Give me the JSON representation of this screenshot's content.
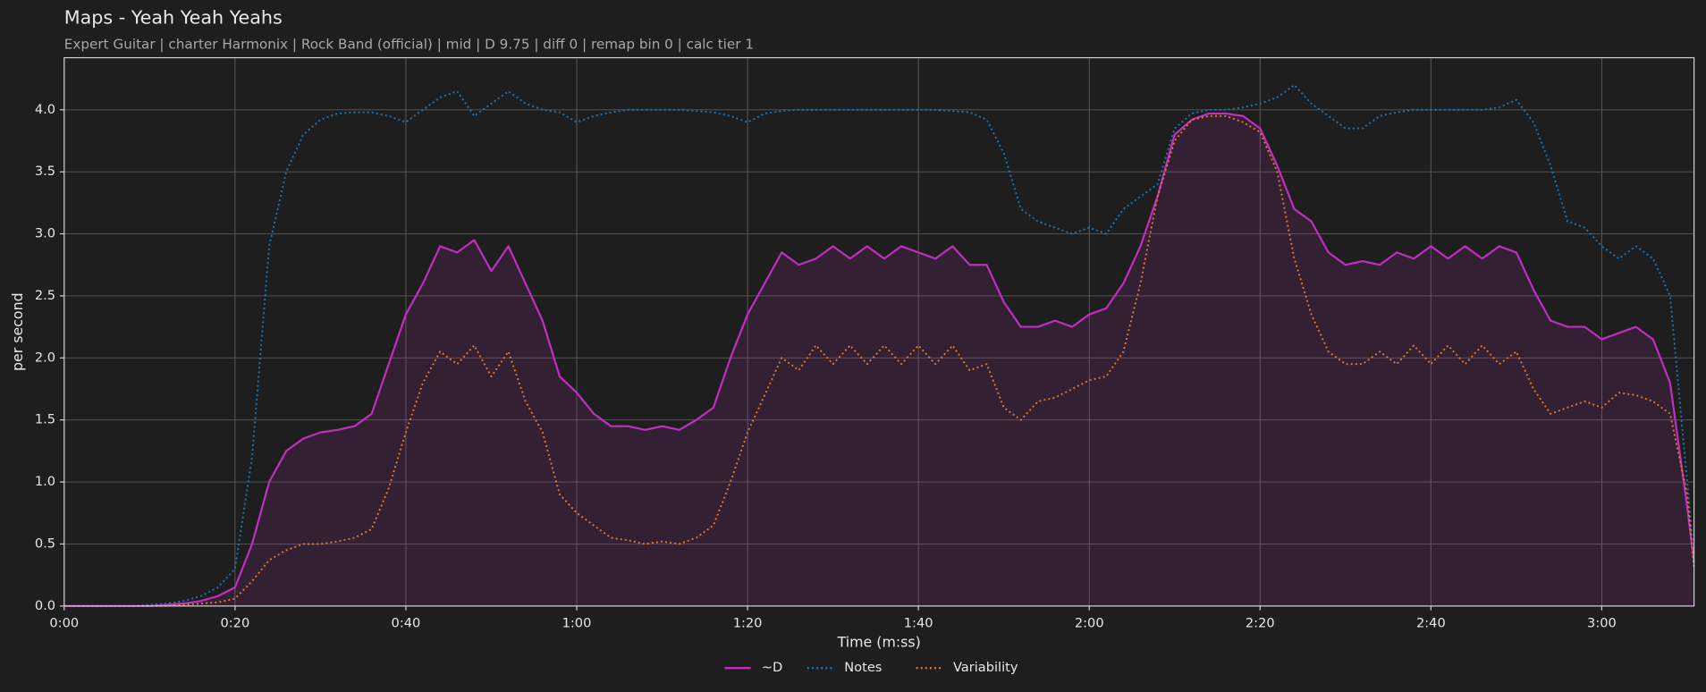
{
  "chart_data": {
    "type": "line",
    "title": "Maps - Yeah Yeah Yeahs",
    "subtitle": "Expert Guitar  |  charter Harmonix  |  Rock Band (official)  |  mid  |  D 9.75  |  diff 0  |  remap bin 0  |  calc tier 1",
    "x_label": "Time (m:ss)",
    "y_label": "per second",
    "xlim": [
      0,
      190.8
    ],
    "ylim": [
      0,
      4.42
    ],
    "xticks": [
      {
        "value": 0,
        "label": "0:00"
      },
      {
        "value": 20,
        "label": "0:20"
      },
      {
        "value": 40,
        "label": "0:40"
      },
      {
        "value": 60,
        "label": "1:00"
      },
      {
        "value": 80,
        "label": "1:20"
      },
      {
        "value": 100,
        "label": "1:40"
      },
      {
        "value": 120,
        "label": "2:00"
      },
      {
        "value": 140,
        "label": "2:20"
      },
      {
        "value": 160,
        "label": "2:40"
      },
      {
        "value": 180,
        "label": "3:00"
      }
    ],
    "yticks": [
      {
        "value": 0,
        "label": "0.0"
      },
      0.5,
      {
        "value": 1,
        "label": "1.0"
      },
      1.5,
      {
        "value": 2,
        "label": "2.0"
      },
      2.5,
      {
        "value": 3,
        "label": "3.0"
      },
      3.5,
      {
        "value": 4,
        "label": "4.0"
      }
    ],
    "grid": true,
    "legend": "bottom",
    "x": [
      0,
      2,
      4,
      6,
      8,
      10,
      12,
      14,
      16,
      18,
      20,
      22,
      24,
      26,
      28,
      30,
      32,
      34,
      36,
      38,
      40,
      42,
      44,
      46,
      48,
      50,
      52,
      54,
      56,
      58,
      60,
      62,
      64,
      66,
      68,
      70,
      72,
      74,
      76,
      78,
      80,
      82,
      84,
      86,
      88,
      90,
      92,
      94,
      96,
      98,
      100,
      102,
      104,
      106,
      108,
      110,
      112,
      114,
      116,
      118,
      120,
      122,
      124,
      126,
      128,
      130,
      132,
      134,
      136,
      138,
      140,
      142,
      144,
      146,
      148,
      150,
      152,
      154,
      156,
      158,
      160,
      162,
      164,
      166,
      168,
      170,
      172,
      174,
      176,
      178,
      180,
      182,
      184,
      186,
      188,
      190,
      190.8
    ],
    "series": [
      {
        "name": "~D",
        "color": "#c02fc0",
        "style": "solid",
        "fill": true,
        "values": [
          0,
          0,
          0,
          0,
          0,
          0,
          0.01,
          0.02,
          0.04,
          0.08,
          0.15,
          0.5,
          1.0,
          1.25,
          1.35,
          1.4,
          1.42,
          1.45,
          1.55,
          1.95,
          2.35,
          2.6,
          2.9,
          2.85,
          2.95,
          2.7,
          2.9,
          2.6,
          2.3,
          1.85,
          1.72,
          1.55,
          1.45,
          1.45,
          1.42,
          1.45,
          1.42,
          1.5,
          1.6,
          2.0,
          2.35,
          2.6,
          2.85,
          2.75,
          2.8,
          2.9,
          2.8,
          2.9,
          2.8,
          2.9,
          2.85,
          2.8,
          2.9,
          2.75,
          2.75,
          2.45,
          2.25,
          2.25,
          2.3,
          2.25,
          2.35,
          2.4,
          2.6,
          2.9,
          3.3,
          3.8,
          3.92,
          3.97,
          3.97,
          3.95,
          3.85,
          3.55,
          3.2,
          3.1,
          2.85,
          2.75,
          2.78,
          2.75,
          2.85,
          2.8,
          2.9,
          2.8,
          2.9,
          2.8,
          2.9,
          2.85,
          2.55,
          2.3,
          2.25,
          2.25,
          2.15,
          2.2,
          2.25,
          2.15,
          1.8,
          0.8,
          0.35
        ]
      },
      {
        "name": "Notes",
        "color": "#1f77b4",
        "style": "dotted",
        "values": [
          0,
          0,
          0,
          0,
          0,
          0.01,
          0.02,
          0.04,
          0.08,
          0.15,
          0.3,
          1.2,
          2.9,
          3.5,
          3.8,
          3.92,
          3.97,
          3.98,
          3.98,
          3.95,
          3.9,
          4.0,
          4.1,
          4.15,
          3.95,
          4.05,
          4.15,
          4.05,
          4.0,
          3.98,
          3.9,
          3.95,
          3.98,
          4.0,
          4.0,
          4.0,
          4.0,
          3.99,
          3.98,
          3.95,
          3.9,
          3.97,
          3.99,
          4.0,
          4.0,
          4.0,
          4.0,
          4.0,
          4.0,
          4.0,
          4.0,
          4.0,
          3.99,
          3.98,
          3.92,
          3.65,
          3.2,
          3.1,
          3.05,
          3.0,
          3.05,
          3.0,
          3.2,
          3.3,
          3.4,
          3.85,
          3.97,
          4.0,
          4.0,
          4.02,
          4.05,
          4.1,
          4.2,
          4.05,
          3.95,
          3.85,
          3.85,
          3.95,
          3.98,
          4.0,
          4.0,
          4.0,
          4.0,
          4.0,
          4.02,
          4.08,
          3.9,
          3.55,
          3.1,
          3.05,
          2.9,
          2.8,
          2.9,
          2.8,
          2.5,
          1.0,
          0.4
        ]
      },
      {
        "name": "Variability",
        "color": "#e07b30",
        "style": "dotted",
        "values": [
          0,
          0,
          0,
          0,
          0,
          0,
          0,
          0.01,
          0.02,
          0.03,
          0.06,
          0.2,
          0.37,
          0.45,
          0.5,
          0.5,
          0.52,
          0.55,
          0.62,
          0.95,
          1.4,
          1.8,
          2.05,
          1.95,
          2.1,
          1.85,
          2.05,
          1.65,
          1.4,
          0.9,
          0.75,
          0.65,
          0.55,
          0.53,
          0.5,
          0.52,
          0.5,
          0.55,
          0.65,
          1.0,
          1.4,
          1.7,
          2.0,
          1.9,
          2.1,
          1.95,
          2.1,
          1.95,
          2.1,
          1.95,
          2.1,
          1.95,
          2.1,
          1.9,
          1.95,
          1.6,
          1.5,
          1.65,
          1.68,
          1.75,
          1.82,
          1.85,
          2.05,
          2.6,
          3.3,
          3.75,
          3.92,
          3.95,
          3.95,
          3.9,
          3.82,
          3.5,
          2.8,
          2.35,
          2.05,
          1.95,
          1.95,
          2.05,
          1.95,
          2.1,
          1.95,
          2.1,
          1.95,
          2.1,
          1.95,
          2.05,
          1.75,
          1.55,
          1.6,
          1.65,
          1.6,
          1.72,
          1.7,
          1.65,
          1.55,
          0.9,
          0.3
        ]
      }
    ]
  }
}
